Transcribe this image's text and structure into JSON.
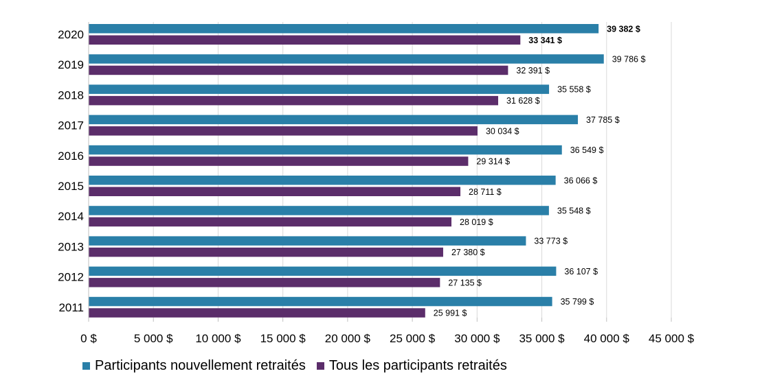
{
  "chart_data": {
    "type": "bar",
    "orientation": "horizontal",
    "categories": [
      "2020",
      "2019",
      "2018",
      "2017",
      "2016",
      "2015",
      "2014",
      "2013",
      "2012",
      "2011"
    ],
    "series": [
      {
        "name": "Participants nouvellement retraités",
        "color": "#2a7fa8",
        "values": [
          39382,
          39786,
          35558,
          37785,
          36549,
          36066,
          35548,
          33773,
          36107,
          35799
        ],
        "labels": [
          "39 382 $",
          "39 786 $",
          "35 558 $",
          "37 785 $",
          "36 549 $",
          "36 066 $",
          "35 548 $",
          "33 773 $",
          "36 107 $",
          "35 799 $"
        ]
      },
      {
        "name": "Tous les participants retraités",
        "color": "#5b2d6a",
        "values": [
          33341,
          32391,
          31628,
          30034,
          29314,
          28711,
          28019,
          27380,
          27135,
          25991
        ],
        "labels": [
          "33 341 $",
          "32 391 $",
          "31 628 $",
          "30 034 $",
          "29 314 $",
          "28 711 $",
          "28 019 $",
          "27 380 $",
          "27 135 $",
          "25 991 $"
        ]
      }
    ],
    "bold_category": "2020",
    "xlim": [
      0,
      45000
    ],
    "xticks": [
      0,
      5000,
      10000,
      15000,
      20000,
      25000,
      30000,
      35000,
      40000,
      45000
    ],
    "xtick_labels": [
      "0 $",
      "5 000 $",
      "10 000 $",
      "15 000 $",
      "20 000 $",
      "25 000 $",
      "30 000 $",
      "35 000 $",
      "40 000 $",
      "45 000 $"
    ],
    "grid": true,
    "legend_position": "bottom-left"
  },
  "legend": {
    "series_1": "Participants nouvellement retraités",
    "series_2": "Tous les participants retraités"
  }
}
